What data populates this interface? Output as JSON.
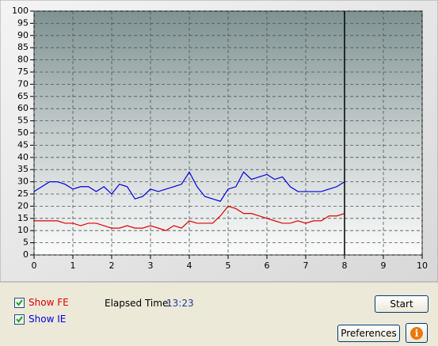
{
  "chart_data": {
    "type": "line",
    "x": [
      0,
      0.2,
      0.4,
      0.6,
      0.8,
      1,
      1.2,
      1.4,
      1.6,
      1.8,
      2,
      2.2,
      2.4,
      2.6,
      2.8,
      3,
      3.2,
      3.4,
      3.6,
      3.8,
      4,
      4.2,
      4.4,
      4.6,
      4.8,
      5,
      5.2,
      5.4,
      5.6,
      5.8,
      6,
      6.2,
      6.4,
      6.6,
      6.8,
      7,
      7.2,
      7.4,
      7.6,
      7.8,
      8
    ],
    "series": [
      {
        "name": "Show FE",
        "color": "#e00000",
        "values": [
          14,
          14,
          14,
          14,
          13,
          13,
          12,
          13,
          13,
          12,
          11,
          11,
          12,
          11,
          11,
          12,
          11,
          10,
          12,
          11,
          14,
          13,
          13,
          13,
          16,
          20,
          19,
          17,
          17,
          16,
          15,
          14,
          13,
          13,
          14,
          13,
          14,
          14,
          16,
          16,
          17
        ]
      },
      {
        "name": "Show IE",
        "color": "#0000e0",
        "values": [
          26,
          28,
          30,
          30,
          29,
          27,
          28,
          28,
          26,
          28,
          25,
          29,
          28,
          23,
          24,
          27,
          26,
          27,
          28,
          29,
          34,
          28,
          24,
          23,
          22,
          27,
          28,
          34,
          31,
          32,
          33,
          31,
          32,
          28,
          26,
          26,
          26,
          26,
          27,
          28,
          30
        ]
      }
    ],
    "xlim": [
      0,
      10
    ],
    "xticks": [
      0,
      1,
      2,
      3,
      4,
      5,
      6,
      7,
      8,
      9,
      10
    ],
    "ylim": [
      0,
      100
    ],
    "yticks": [
      0,
      5,
      10,
      15,
      20,
      25,
      30,
      35,
      40,
      45,
      50,
      55,
      60,
      65,
      70,
      75,
      80,
      85,
      90,
      95,
      100
    ],
    "grid": true,
    "cursor_x": 8
  },
  "controls": {
    "elapsed_label": "Elapsed Time:",
    "elapsed_value": "13:23",
    "start": "Start",
    "preferences": "Preferences",
    "info": "i"
  }
}
